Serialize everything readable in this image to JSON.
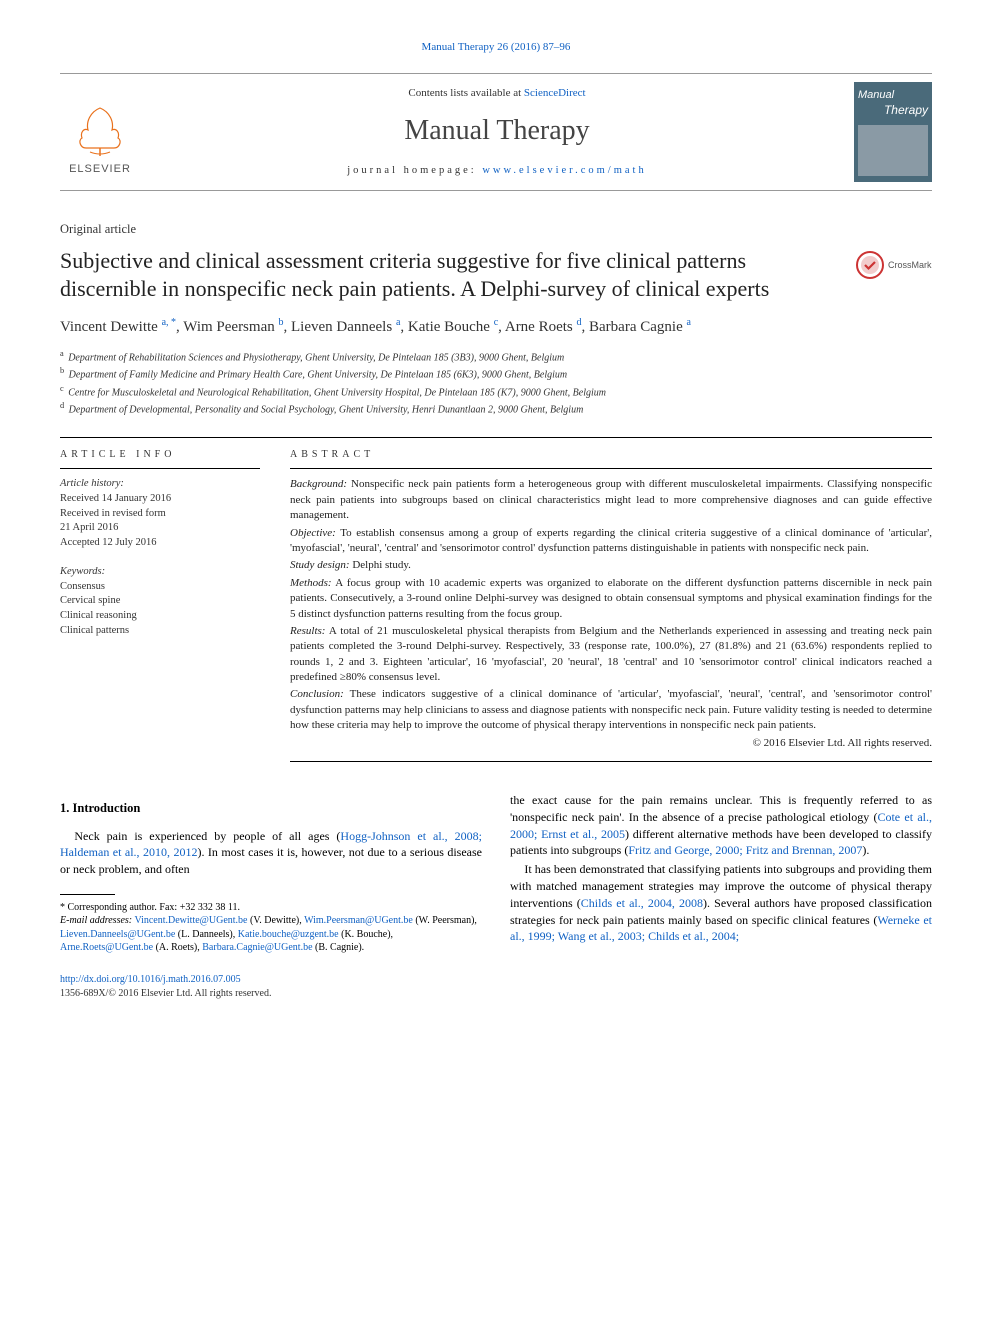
{
  "top_citation": "Manual Therapy 26 (2016) 87–96",
  "header": {
    "contents_lists": "Contents lists available at ",
    "contents_link": "ScienceDirect",
    "journal_name": "Manual Therapy",
    "homepage_label": "journal homepage: ",
    "homepage_url": "www.elsevier.com/math",
    "elsevier_label": "ELSEVIER",
    "thumb_line1": "Manual",
    "thumb_line2": "Therapy"
  },
  "article_type": "Original article",
  "title": "Subjective and clinical assessment criteria suggestive for five clinical patterns discernible in nonspecific neck pain patients. A Delphi-survey of clinical experts",
  "crossmark_label": "CrossMark",
  "authors": [
    {
      "name": "Vincent Dewitte",
      "sup": "a, *"
    },
    {
      "name": "Wim Peersman",
      "sup": "b"
    },
    {
      "name": "Lieven Danneels",
      "sup": "a"
    },
    {
      "name": "Katie Bouche",
      "sup": "c"
    },
    {
      "name": "Arne Roets",
      "sup": "d"
    },
    {
      "name": "Barbara Cagnie",
      "sup": "a"
    }
  ],
  "affiliations": [
    {
      "sup": "a",
      "text": "Department of Rehabilitation Sciences and Physiotherapy, Ghent University, De Pintelaan 185 (3B3), 9000 Ghent, Belgium"
    },
    {
      "sup": "b",
      "text": "Department of Family Medicine and Primary Health Care, Ghent University, De Pintelaan 185 (6K3), 9000 Ghent, Belgium"
    },
    {
      "sup": "c",
      "text": "Centre for Musculoskeletal and Neurological Rehabilitation, Ghent University Hospital, De Pintelaan 185 (K7), 9000 Ghent, Belgium"
    },
    {
      "sup": "d",
      "text": "Department of Developmental, Personality and Social Psychology, Ghent University, Henri Dunantlaan 2, 9000 Ghent, Belgium"
    }
  ],
  "article_info": {
    "header": "ARTICLE INFO",
    "history_label": "Article history:",
    "history": [
      "Received 14 January 2016",
      "Received in revised form",
      "21 April 2016",
      "Accepted 12 July 2016"
    ],
    "keywords_label": "Keywords:",
    "keywords": [
      "Consensus",
      "Cervical spine",
      "Clinical reasoning",
      "Clinical patterns"
    ]
  },
  "abstract": {
    "header": "ABSTRACT",
    "sections": [
      {
        "label": "Background:",
        "text": " Nonspecific neck pain patients form a heterogeneous group with different musculoskeletal impairments. Classifying nonspecific neck pain patients into subgroups based on clinical characteristics might lead to more comprehensive diagnoses and can guide effective management."
      },
      {
        "label": "Objective:",
        "text": " To establish consensus among a group of experts regarding the clinical criteria suggestive of a clinical dominance of 'articular', 'myofascial', 'neural', 'central' and 'sensorimotor control' dysfunction patterns distinguishable in patients with nonspecific neck pain."
      },
      {
        "label": "Study design:",
        "text": " Delphi study."
      },
      {
        "label": "Methods:",
        "text": " A focus group with 10 academic experts was organized to elaborate on the different dysfunction patterns discernible in neck pain patients. Consecutively, a 3-round online Delphi-survey was designed to obtain consensual symptoms and physical examination findings for the 5 distinct dysfunction patterns resulting from the focus group."
      },
      {
        "label": "Results:",
        "text": " A total of 21 musculoskeletal physical therapists from Belgium and the Netherlands experienced in assessing and treating neck pain patients completed the 3-round Delphi-survey. Respectively, 33 (response rate, 100.0%), 27 (81.8%) and 21 (63.6%) respondents replied to rounds 1, 2 and 3. Eighteen 'articular', 16 'myofascial', 20 'neural', 18 'central' and 10 'sensorimotor control' clinical indicators reached a predefined ≥80% consensus level."
      },
      {
        "label": "Conclusion:",
        "text": " These indicators suggestive of a clinical dominance of 'articular', 'myofascial', 'neural', 'central', and 'sensorimotor control' dysfunction patterns may help clinicians to assess and diagnose patients with nonspecific neck pain. Future validity testing is needed to determine how these criteria may help to improve the outcome of physical therapy interventions in nonspecific neck pain patients."
      }
    ],
    "copyright": "© 2016 Elsevier Ltd. All rights reserved."
  },
  "body": {
    "section_heading": "1. Introduction",
    "p1_a": "Neck pain is experienced by people of all ages (",
    "p1_link1": "Hogg-Johnson et al., 2008; Haldeman et al., 2010, 2012",
    "p1_b": "). In most cases it is, however, not due to a serious disease or neck problem, and often ",
    "p2_a": "the exact cause for the pain remains unclear. This is frequently referred to as 'nonspecific neck pain'. In the absence of a precise pathological etiology (",
    "p2_link1": "Cote et al., 2000; Ernst et al., 2005",
    "p2_b": ") different alternative methods have been developed to classify patients into subgroups (",
    "p2_link2": "Fritz and George, 2000; Fritz and Brennan, 2007",
    "p2_c": ").",
    "p3_a": "It has been demonstrated that classifying patients into subgroups and providing them with matched management strategies may improve the outcome of physical therapy interventions (",
    "p3_link1": "Childs et al., 2004, 2008",
    "p3_b": "). Several authors have proposed classification strategies for neck pain patients mainly based on specific clinical features (",
    "p3_link2": "Werneke et al., 1999; Wang et al., 2003; Childs et al., 2004;"
  },
  "footnotes": {
    "corresponding": "* Corresponding author. Fax: +32 332 38 11.",
    "email_label": "E-mail addresses:",
    "emails": [
      {
        "addr": "Vincent.Dewitte@UGent.be",
        "who": " (V. Dewitte), "
      },
      {
        "addr": "Wim.Peersman@UGent.be",
        "who": " (W. Peersman), "
      },
      {
        "addr": "Lieven.Danneels@UGent.be",
        "who": " (L. Danneels), "
      },
      {
        "addr": "Katie.bouche@uzgent.be",
        "who": " (K. Bouche), "
      },
      {
        "addr": "Arne.Roets@UGent.be",
        "who": " (A. Roets), "
      },
      {
        "addr": "Barbara.Cagnie@UGent.be",
        "who": " (B. Cagnie)."
      }
    ]
  },
  "doi": {
    "url": "http://dx.doi.org/10.1016/j.math.2016.07.005",
    "issn_line": "1356-689X/© 2016 Elsevier Ltd. All rights reserved."
  },
  "colors": {
    "link": "#1061c3",
    "elsevier_orange": "#e9711c",
    "thumb_bg": "#4a6a7a",
    "text": "#000000",
    "muted": "#333333"
  }
}
